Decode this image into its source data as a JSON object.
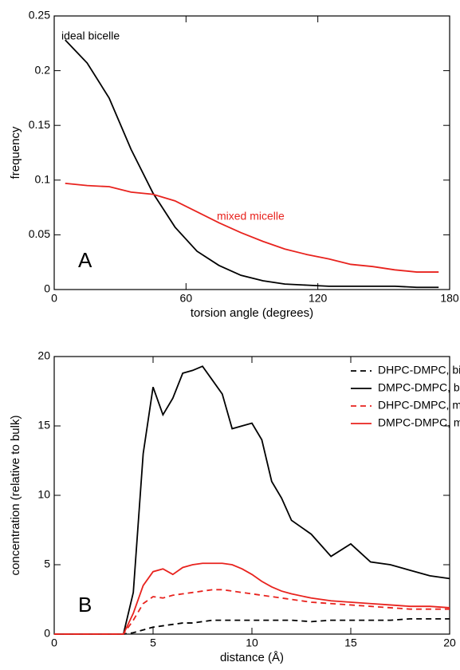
{
  "chart_data": [
    {
      "type": "line",
      "label": "A",
      "xlabel": "torsion angle (degrees)",
      "ylabel": "frequency",
      "x": [
        5,
        15,
        25,
        35,
        45,
        55,
        65,
        75,
        85,
        95,
        105,
        115,
        125,
        135,
        145,
        155,
        165,
        175
      ],
      "series": [
        {
          "name": "ideal bicelle",
          "color": "#000000",
          "linestyle": "solid",
          "values": [
            0.228,
            0.207,
            0.175,
            0.128,
            0.088,
            0.057,
            0.035,
            0.022,
            0.013,
            0.008,
            0.005,
            0.004,
            0.003,
            0.003,
            0.003,
            0.003,
            0.002,
            0.002
          ]
        },
        {
          "name": "mixed micelle",
          "color": "#e8231e",
          "linestyle": "solid",
          "values": [
            0.097,
            0.095,
            0.094,
            0.089,
            0.087,
            0.081,
            0.071,
            0.061,
            0.052,
            0.044,
            0.037,
            0.032,
            0.028,
            0.023,
            0.021,
            0.018,
            0.016,
            0.016
          ]
        }
      ],
      "xlim": [
        0,
        180
      ],
      "xticks": [
        0,
        60,
        120,
        180
      ],
      "ylim": [
        0,
        0.25
      ],
      "yticks": [
        0,
        0.05,
        0.1,
        0.15,
        0.2,
        0.25
      ]
    },
    {
      "type": "line",
      "label": "B",
      "xlabel": "distance (Å)",
      "ylabel": "concentration (relative to bulk)",
      "legend": "upper right",
      "x": [
        0,
        1,
        2,
        3,
        3.5,
        4,
        4.5,
        5,
        5.5,
        6,
        6.5,
        7,
        7.5,
        8,
        8.5,
        9,
        9.5,
        10,
        10.5,
        11,
        11.5,
        12,
        13,
        14,
        15,
        16,
        17,
        18,
        19,
        20
      ],
      "series": [
        {
          "name": "DHPC-DMPC, bicelle",
          "color": "#000000",
          "linestyle": "dashed",
          "values": [
            0,
            0,
            0,
            0,
            0,
            0.1,
            0.3,
            0.5,
            0.6,
            0.7,
            0.8,
            0.8,
            0.9,
            1.0,
            1.0,
            1.0,
            1.0,
            1.0,
            1.0,
            1.0,
            1.0,
            1.0,
            0.9,
            1.0,
            1.0,
            1.0,
            1.0,
            1.1,
            1.1,
            1.1
          ]
        },
        {
          "name": "DMPC-DMPC, bicelle",
          "color": "#000000",
          "linestyle": "solid",
          "values": [
            0,
            0,
            0,
            0,
            0,
            3,
            13,
            17.8,
            15.8,
            17,
            18.8,
            19,
            19.3,
            18.3,
            17.3,
            14.8,
            15,
            15.2,
            14,
            11,
            9.8,
            8.2,
            7.2,
            5.6,
            6.5,
            5.2,
            5,
            4.6,
            4.2,
            4.0
          ]
        },
        {
          "name": "DHPC-DMPC, micelle",
          "color": "#e8231e",
          "linestyle": "dashed",
          "values": [
            0,
            0,
            0,
            0,
            0,
            1,
            2.2,
            2.7,
            2.6,
            2.8,
            2.9,
            3.0,
            3.1,
            3.2,
            3.2,
            3.1,
            3.0,
            2.9,
            2.8,
            2.7,
            2.6,
            2.5,
            2.3,
            2.2,
            2.1,
            2.0,
            1.9,
            1.8,
            1.8,
            1.8
          ]
        },
        {
          "name": "DMPC-DMPC, micelle",
          "color": "#e8231e",
          "linestyle": "solid",
          "values": [
            0,
            0,
            0,
            0,
            0,
            1.5,
            3.5,
            4.5,
            4.7,
            4.3,
            4.8,
            5.0,
            5.1,
            5.1,
            5.1,
            5.0,
            4.7,
            4.3,
            3.8,
            3.4,
            3.1,
            2.9,
            2.6,
            2.4,
            2.3,
            2.2,
            2.1,
            2.0,
            2.0,
            1.9
          ]
        }
      ],
      "xlim": [
        0,
        20
      ],
      "xticks": [
        0,
        5,
        10,
        15,
        20
      ],
      "ylim": [
        0,
        20
      ],
      "yticks": [
        0,
        5,
        10,
        15,
        20
      ]
    }
  ]
}
